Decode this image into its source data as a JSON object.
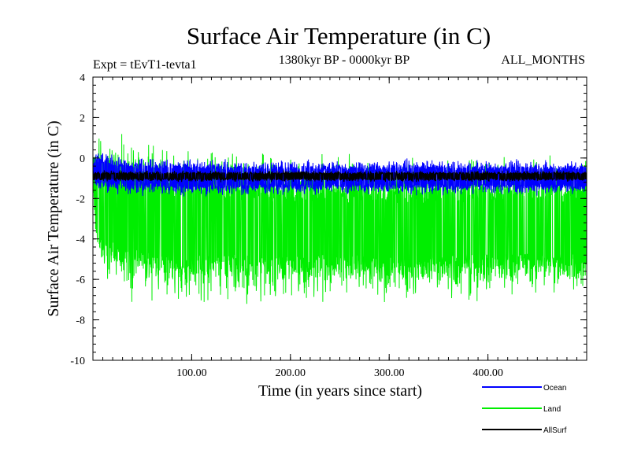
{
  "chart_data": {
    "type": "line",
    "title": "Surface Air Temperature (in C)",
    "subtitle_left": "Expt = tEvT1-tevta1",
    "subtitle_center": "1380kyr BP - 0000kyr BP",
    "subtitle_right": "ALL_MONTHS",
    "xlabel": "Time (in years since start)",
    "ylabel": "Surface Air Temperature (in C)",
    "xlim": [
      0,
      500
    ],
    "ylim": [
      -10,
      4
    ],
    "x_ticks": [
      100,
      200,
      300,
      400
    ],
    "x_tick_labels": [
      "100.00",
      "200.00",
      "300.00",
      "400.00"
    ],
    "y_ticks": [
      -10,
      -8,
      -6,
      -4,
      -2,
      0,
      2,
      4
    ],
    "y_tick_labels": [
      "-10",
      "-8",
      "-6",
      "-4",
      "-2",
      "0",
      "2",
      "4"
    ],
    "series": [
      {
        "name": "Land",
        "color": "#00ee00",
        "x": [
          0,
          3,
          10,
          25,
          50,
          75,
          100,
          150,
          200,
          250,
          300,
          350,
          400,
          450,
          500
        ],
        "upper": [
          0.4,
          1.8,
          1.7,
          1.5,
          1.2,
          1.0,
          0.8,
          0.6,
          0.4,
          0.4,
          0.3,
          0.3,
          0.3,
          0.3,
          0.3
        ],
        "lower": [
          -1.5,
          -5.5,
          -6.5,
          -7.0,
          -7.4,
          -7.5,
          -7.6,
          -7.4,
          -7.4,
          -7.3,
          -7.4,
          -7.3,
          -7.2,
          -7.1,
          -7.0
        ]
      },
      {
        "name": "Ocean",
        "color": "#0000ff",
        "x": [
          0,
          3,
          10,
          25,
          50,
          75,
          100,
          150,
          200,
          250,
          300,
          350,
          400,
          450,
          500
        ],
        "upper": [
          -0.3,
          0.6,
          0.4,
          0.2,
          0.1,
          0.1,
          0.1,
          0.0,
          0.0,
          0.0,
          0.0,
          0.0,
          0.0,
          0.0,
          0.0
        ],
        "lower": [
          -0.8,
          -1.6,
          -1.8,
          -1.9,
          -1.9,
          -1.9,
          -2.0,
          -1.9,
          -1.9,
          -1.9,
          -1.9,
          -1.9,
          -1.9,
          -1.9,
          -1.9
        ]
      },
      {
        "name": "AllSurf",
        "color": "#000000",
        "x": [
          0,
          500
        ],
        "upper": [
          -0.6,
          -0.6
        ],
        "lower": [
          -1.2,
          -1.2
        ]
      }
    ],
    "legend": [
      {
        "name": "Ocean",
        "color": "#0000ff"
      },
      {
        "name": "Land",
        "color": "#00ee00"
      },
      {
        "name": "AllSurf",
        "color": "#000000"
      }
    ],
    "legend_position": "bottom-right",
    "grid": false
  }
}
